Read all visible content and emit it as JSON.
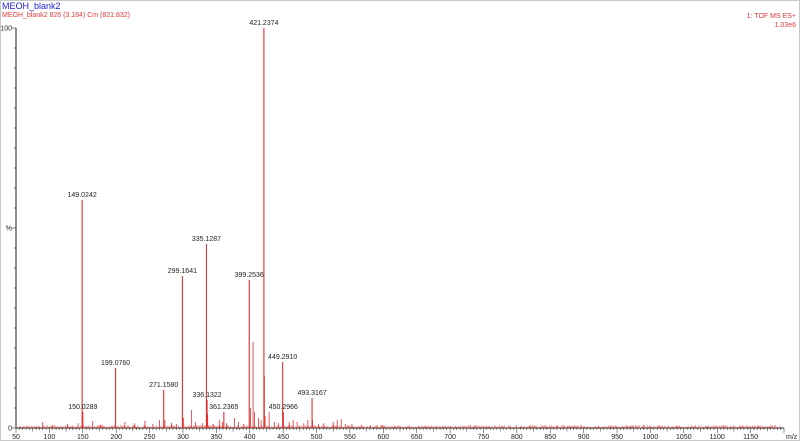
{
  "header": {
    "sample_name": "MEOH_blank2",
    "scan_info": "MEOH_blank2 826 (3.184) Cm (821:832)",
    "function": "1: TOF MS ES+",
    "intensity": "1.03e6"
  },
  "colors": {
    "spectrum": "#e03030",
    "title": "#1f1fd6",
    "axis": "#222222"
  },
  "chart_data": {
    "type": "bar",
    "xlabel": "m/z",
    "ylabel": "%",
    "xlim": [
      50,
      1200
    ],
    "ylim": [
      0,
      100
    ],
    "x_ticks": [
      50,
      100,
      150,
      200,
      250,
      300,
      350,
      400,
      450,
      500,
      550,
      600,
      650,
      700,
      750,
      800,
      850,
      900,
      950,
      1000,
      1050,
      1100,
      1150
    ],
    "y_tick_labels": [
      {
        "value": 100,
        "label": "100"
      },
      {
        "value": 50,
        "label": "%"
      },
      {
        "value": 0,
        "label": "0"
      }
    ],
    "labeled_peaks": [
      {
        "mz": 421.2374,
        "intensity": 100,
        "label": "421.2374"
      },
      {
        "mz": 149.0242,
        "intensity": 57,
        "label": "149.0242"
      },
      {
        "mz": 335.1287,
        "intensity": 46,
        "label": "335.1287"
      },
      {
        "mz": 299.1641,
        "intensity": 38,
        "label": "299.1641"
      },
      {
        "mz": 399.2536,
        "intensity": 37,
        "label": "399.2536"
      },
      {
        "mz": 199.076,
        "intensity": 15,
        "label": "199.0760"
      },
      {
        "mz": 449.291,
        "intensity": 16.5,
        "label": "449.2910"
      },
      {
        "mz": 271.158,
        "intensity": 9.5,
        "label": "271.1580"
      },
      {
        "mz": 336.1322,
        "intensity": 7,
        "label": "336.1322"
      },
      {
        "mz": 493.3167,
        "intensity": 7.5,
        "label": "493.3167"
      },
      {
        "mz": 361.2365,
        "intensity": 4,
        "label": "361.2365"
      },
      {
        "mz": 150.0289,
        "intensity": 4,
        "label": "150.0289"
      },
      {
        "mz": 450.2966,
        "intensity": 4,
        "label": "450.2966"
      }
    ],
    "minor_peaks": [
      {
        "mz": 90,
        "intensity": 1.5
      },
      {
        "mz": 105,
        "intensity": 0.8
      },
      {
        "mz": 127,
        "intensity": 1.0
      },
      {
        "mz": 143,
        "intensity": 1.2
      },
      {
        "mz": 165,
        "intensity": 1.8
      },
      {
        "mz": 177,
        "intensity": 0.9
      },
      {
        "mz": 213,
        "intensity": 1.5
      },
      {
        "mz": 227,
        "intensity": 1.2
      },
      {
        "mz": 243,
        "intensity": 1.8
      },
      {
        "mz": 255,
        "intensity": 1.0
      },
      {
        "mz": 265,
        "intensity": 2.0
      },
      {
        "mz": 273,
        "intensity": 2.0
      },
      {
        "mz": 283,
        "intensity": 1.3
      },
      {
        "mz": 290,
        "intensity": 1.0
      },
      {
        "mz": 301,
        "intensity": 2.5
      },
      {
        "mz": 313,
        "intensity": 4.5
      },
      {
        "mz": 319,
        "intensity": 1.5
      },
      {
        "mz": 329,
        "intensity": 1.2
      },
      {
        "mz": 337,
        "intensity": 3.5
      },
      {
        "mz": 345,
        "intensity": 1.0
      },
      {
        "mz": 355,
        "intensity": 2.0
      },
      {
        "mz": 359,
        "intensity": 1.5
      },
      {
        "mz": 365,
        "intensity": 1.2
      },
      {
        "mz": 377,
        "intensity": 2.5
      },
      {
        "mz": 383,
        "intensity": 1.5
      },
      {
        "mz": 391,
        "intensity": 1.0
      },
      {
        "mz": 401,
        "intensity": 5.0
      },
      {
        "mz": 405,
        "intensity": 21.5
      },
      {
        "mz": 407,
        "intensity": 4.0
      },
      {
        "mz": 413,
        "intensity": 2.5
      },
      {
        "mz": 417,
        "intensity": 2.0
      },
      {
        "mz": 422,
        "intensity": 13.0
      },
      {
        "mz": 423,
        "intensity": 3.0
      },
      {
        "mz": 429,
        "intensity": 4.0
      },
      {
        "mz": 437,
        "intensity": 1.5
      },
      {
        "mz": 443,
        "intensity": 1.2
      },
      {
        "mz": 459,
        "intensity": 1.5
      },
      {
        "mz": 465,
        "intensity": 2.0
      },
      {
        "mz": 471,
        "intensity": 1.5
      },
      {
        "mz": 481,
        "intensity": 1.2
      },
      {
        "mz": 487,
        "intensity": 2.0
      },
      {
        "mz": 494,
        "intensity": 2.0
      },
      {
        "mz": 503,
        "intensity": 1.0
      },
      {
        "mz": 511,
        "intensity": 1.2
      },
      {
        "mz": 525,
        "intensity": 1.5
      },
      {
        "mz": 531,
        "intensity": 2.0
      },
      {
        "mz": 537,
        "intensity": 2.2
      },
      {
        "mz": 543,
        "intensity": 1.0
      },
      {
        "mz": 553,
        "intensity": 1.0
      },
      {
        "mz": 567,
        "intensity": 0.8
      },
      {
        "mz": 581,
        "intensity": 0.7
      },
      {
        "mz": 599,
        "intensity": 0.6
      },
      {
        "mz": 625,
        "intensity": 0.6
      },
      {
        "mz": 653,
        "intensity": 0.5
      },
      {
        "mz": 701,
        "intensity": 0.5
      },
      {
        "mz": 757,
        "intensity": 0.4
      },
      {
        "mz": 819,
        "intensity": 0.6
      },
      {
        "mz": 861,
        "intensity": 0.4
      },
      {
        "mz": 923,
        "intensity": 0.3
      },
      {
        "mz": 1001,
        "intensity": 0.3
      },
      {
        "mz": 1085,
        "intensity": 0.3
      },
      {
        "mz": 1163,
        "intensity": 0.3
      }
    ]
  }
}
